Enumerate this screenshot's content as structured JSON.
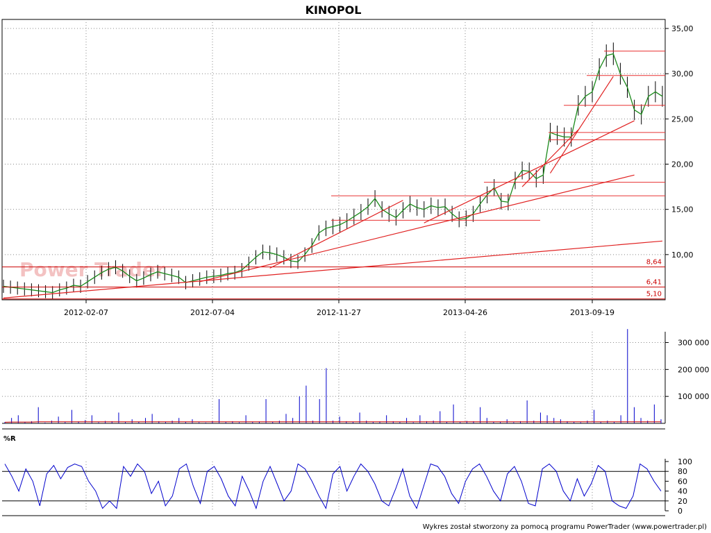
{
  "chart_data": [
    {
      "type": "line",
      "title": "KINOPOL",
      "ylim": [
        5,
        36
      ],
      "x_tick_labels": [
        "2012-02-07",
        "2012-07-04",
        "2012-11-27",
        "2013-04-26",
        "2013-09-19"
      ],
      "y_tick_labels": [
        "10,00",
        "15,00",
        "20,00",
        "25,00",
        "30,00",
        "35,00"
      ],
      "y_ticks": [
        10,
        15,
        20,
        25,
        30,
        35
      ],
      "grid": true,
      "watermark": "Power Trader",
      "series": [
        {
          "values": [
            6.5,
            6.4,
            6.3,
            6.2,
            6.1,
            6.0,
            5.9,
            5.8,
            6.1,
            6.3,
            6.6,
            6.5,
            7.0,
            7.5,
            8.0,
            8.4,
            8.6,
            8.2,
            7.6,
            7.1,
            7.4,
            7.8,
            8.1,
            7.9,
            7.7,
            7.5,
            6.9,
            7.1,
            7.3,
            7.5,
            7.6,
            7.7,
            7.9,
            8.0,
            8.3,
            9.0,
            9.7,
            10.3,
            10.2,
            10.0,
            9.7,
            9.3,
            9.2,
            10.0,
            11.0,
            12.4,
            12.9,
            13.1,
            13.3,
            13.7,
            14.2,
            14.7,
            15.3,
            16.2,
            15.0,
            14.5,
            14.1,
            14.9,
            15.6,
            15.2,
            15.0,
            15.4,
            15.2,
            15.3,
            14.5,
            13.9,
            14.0,
            14.5,
            15.6,
            16.6,
            17.4,
            15.9,
            15.8,
            18.2,
            19.3,
            19.2,
            18.4,
            18.8,
            23.5,
            23.2,
            23.0,
            23.0,
            26.5,
            27.5,
            28.0,
            30.5,
            32.0,
            32.2,
            30.0,
            28.5,
            26.0,
            25.5,
            27.5,
            28.0,
            27.5
          ]
        },
        {
          "name": "lines",
          "values": [
            8.64,
            6.41,
            5.1
          ]
        }
      ],
      "level_labels": [
        "8,64",
        "6,41",
        "5,10"
      ],
      "resistance_levels": [
        32.5,
        29.8,
        26.5,
        23.5,
        22.7,
        18.0,
        16.5,
        13.8
      ],
      "trendlines": [
        {
          "from": [
            0,
            5.2
          ],
          "to": [
            94,
            11.5
          ]
        },
        {
          "from": [
            28,
            7.0
          ],
          "to": [
            90,
            18.8
          ]
        },
        {
          "from": [
            38,
            8.5
          ],
          "to": [
            57,
            16.0
          ]
        },
        {
          "from": [
            60,
            13.5
          ],
          "to": [
            90,
            24.8
          ]
        },
        {
          "from": [
            74,
            17.5
          ],
          "to": [
            82,
            23.8
          ]
        },
        {
          "from": [
            78,
            19.0
          ],
          "to": [
            87,
            29.7
          ]
        }
      ]
    },
    {
      "type": "bar",
      "y_tick_labels": [
        "100 000",
        "200 000",
        "300 000"
      ],
      "y_ticks": [
        100000,
        200000,
        300000
      ],
      "ylim": [
        0,
        340000
      ],
      "values": [
        5000,
        20000,
        30000,
        4000,
        8000,
        60000,
        3000,
        10000,
        25000,
        5000,
        50000,
        7000,
        12000,
        30000,
        4000,
        9000,
        8000,
        40000,
        5000,
        15000,
        6000,
        20000,
        35000,
        8000,
        5000,
        10000,
        20000,
        6000,
        15000,
        4000,
        3000,
        8000,
        90000,
        5000,
        8000,
        4000,
        30000,
        5000,
        7000,
        90000,
        6000,
        10000,
        35000,
        20000,
        100000,
        140000,
        10000,
        90000,
        205000,
        10000,
        25000,
        8000,
        5000,
        40000,
        10000,
        6000,
        7000,
        30000,
        8000,
        5000,
        20000,
        4000,
        30000,
        8000,
        10000,
        45000,
        6000,
        70000,
        5000,
        9000,
        8000,
        60000,
        20000,
        6000,
        5000,
        15000,
        4000,
        8000,
        85000,
        10000,
        40000,
        30000,
        20000,
        15000,
        8000,
        6000,
        4000,
        10000,
        50000,
        5000,
        10000,
        5000,
        30000,
        350000,
        60000,
        20000,
        10000,
        70000,
        15000
      ],
      "avg_line": [
        4000,
        5000,
        5000,
        5000,
        5000,
        6000,
        6000,
        6000,
        6000,
        6000,
        6000,
        6000,
        6000,
        6000,
        6000,
        6000,
        6000,
        6000,
        6000,
        6000,
        6000,
        6000,
        6000,
        6000,
        6000,
        6000,
        6000,
        6000,
        6000,
        6000,
        6000,
        6000,
        6000,
        6000,
        6000,
        6000,
        6000,
        6000,
        6000,
        6000,
        6000,
        6000,
        6000,
        6000,
        6000,
        6000,
        6000,
        6000,
        6000,
        6000,
        6000,
        6000,
        6000,
        6000,
        6000,
        6000,
        6000,
        6000,
        6000,
        6000,
        6000,
        6000,
        6000,
        6000,
        6000,
        6000,
        6000,
        6000,
        6000,
        6000,
        6000,
        6000,
        6000,
        6000,
        6000,
        6000,
        6000,
        6000,
        6000,
        6000,
        6000,
        6000,
        6000,
        6000,
        6000,
        6000,
        6000,
        6000,
        6000,
        6000,
        6000,
        6000,
        6000,
        6000,
        6000,
        6000,
        6000,
        6000,
        6000
      ]
    },
    {
      "type": "line",
      "title": "%R",
      "ylim": [
        0,
        100
      ],
      "y_ticks": [
        0,
        20,
        40,
        60,
        80,
        100
      ],
      "y_tick_labels": [
        "0",
        "20",
        "40",
        "60",
        "80",
        "100"
      ],
      "ref_lines": [
        20,
        80
      ],
      "values": [
        95,
        70,
        40,
        85,
        60,
        10,
        75,
        92,
        65,
        88,
        95,
        90,
        60,
        40,
        5,
        20,
        5,
        90,
        70,
        95,
        80,
        35,
        60,
        10,
        30,
        85,
        95,
        50,
        15,
        80,
        90,
        65,
        30,
        10,
        70,
        40,
        5,
        60,
        90,
        55,
        20,
        40,
        95,
        85,
        60,
        30,
        5,
        75,
        90,
        40,
        70,
        95,
        80,
        55,
        20,
        10,
        45,
        85,
        30,
        5,
        50,
        95,
        90,
        70,
        35,
        15,
        60,
        85,
        95,
        70,
        40,
        20,
        75,
        90,
        60,
        15,
        10,
        85,
        95,
        80,
        40,
        20,
        65,
        30,
        55,
        92,
        80,
        20,
        10,
        5,
        30,
        95,
        85,
        60,
        40
      ]
    }
  ],
  "footer": {
    "credit": "Wykres został stworzony za pomocą programu PowerTrader (www.powertrader.pl)"
  }
}
